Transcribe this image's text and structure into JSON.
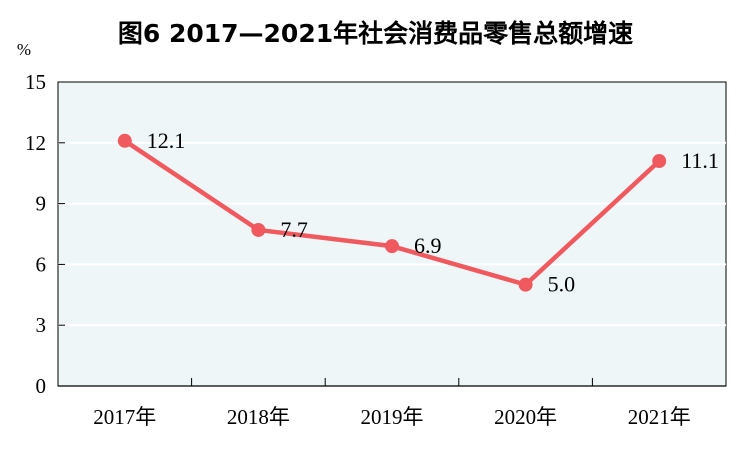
{
  "chart_data": {
    "type": "line",
    "title": "图6  2017—2021年社会消费品零售总额增速",
    "ylabel": "%",
    "xlabel": "",
    "categories": [
      "2017年",
      "2018年",
      "2019年",
      "2020年",
      "2021年"
    ],
    "series": [
      {
        "values": [
          12.1,
          7.7,
          6.9,
          5.0,
          11.1
        ],
        "labels": [
          "12.1",
          "7.7",
          "6.9",
          "5.0",
          "11.1"
        ]
      }
    ],
    "ylim": [
      0,
      15
    ],
    "yticks": [
      0,
      3,
      6,
      9,
      12,
      15
    ],
    "grid": true,
    "legend": "none"
  },
  "colors": {
    "plot_background": "#eef6f8",
    "line": "#f05a5e",
    "grid": "#ffffff",
    "axis": "#000000"
  }
}
